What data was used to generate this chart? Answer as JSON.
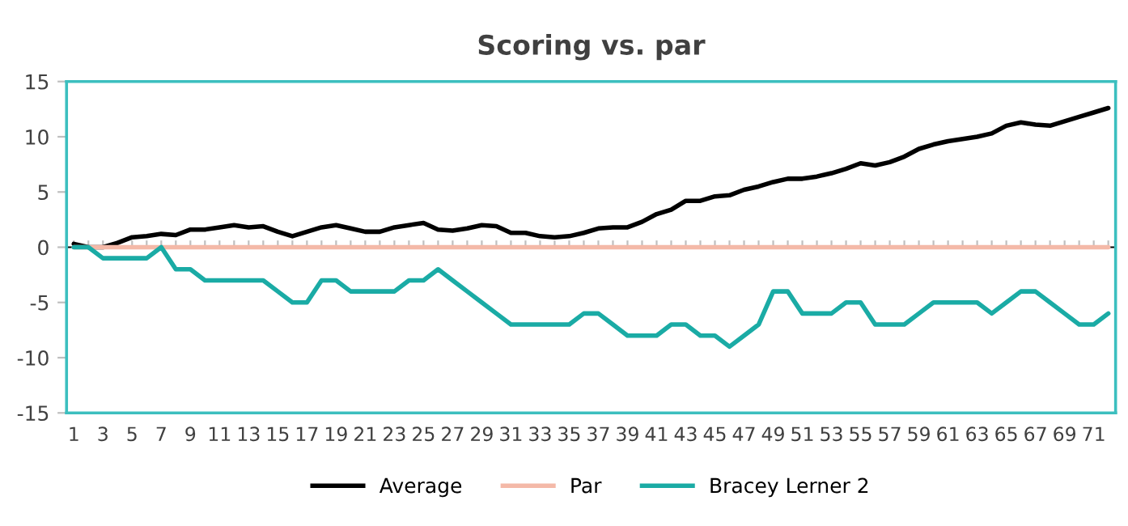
{
  "chart_data": {
    "type": "line",
    "title": "Scoring vs. par",
    "categories": [
      "1",
      null,
      "3",
      null,
      "5",
      null,
      "7",
      null,
      "9",
      null,
      "11",
      null,
      "13",
      null,
      "15",
      null,
      "17",
      null,
      "19",
      null,
      "21",
      null,
      "23",
      null,
      "25",
      null,
      "27",
      null,
      "29",
      null,
      "31",
      null,
      "33",
      null,
      "35",
      null,
      "37",
      null,
      "39",
      null,
      "41",
      null,
      "43",
      null,
      "45",
      null,
      "47",
      null,
      "49",
      null,
      "51",
      null,
      "53",
      null,
      "55",
      null,
      "57",
      null,
      "59",
      null,
      "61",
      null,
      "63",
      null,
      "65",
      null,
      "67",
      null,
      "69",
      null,
      "71",
      null
    ],
    "series": [
      {
        "name": "Average",
        "color": "#000000",
        "values": [
          0.3,
          0,
          0,
          0.4,
          0.9,
          1.0,
          1.2,
          1.1,
          1.6,
          1.6,
          1.8,
          2.0,
          1.8,
          1.9,
          1.4,
          1.0,
          1.4,
          1.8,
          2.0,
          1.7,
          1.4,
          1.4,
          1.8,
          2.0,
          2.2,
          1.6,
          1.5,
          1.7,
          2.0,
          1.9,
          1.3,
          1.3,
          1.0,
          0.9,
          1.0,
          1.3,
          1.7,
          1.8,
          1.8,
          2.3,
          3.0,
          3.4,
          4.2,
          4.2,
          4.6,
          4.7,
          5.2,
          5.5,
          5.9,
          6.2,
          6.2,
          6.4,
          6.7,
          7.1,
          7.6,
          7.4,
          7.7,
          8.2,
          8.9,
          9.3,
          9.6,
          9.8,
          10.0,
          10.3,
          11.0,
          11.3,
          11.1,
          11.0,
          11.4,
          11.8,
          12.2,
          12.6
        ]
      },
      {
        "name": "Par",
        "color": "#f4b9a8",
        "values": [
          0,
          0,
          0,
          0,
          0,
          0,
          0,
          0,
          0,
          0,
          0,
          0,
          0,
          0,
          0,
          0,
          0,
          0,
          0,
          0,
          0,
          0,
          0,
          0,
          0,
          0,
          0,
          0,
          0,
          0,
          0,
          0,
          0,
          0,
          0,
          0,
          0,
          0,
          0,
          0,
          0,
          0,
          0,
          0,
          0,
          0,
          0,
          0,
          0,
          0,
          0,
          0,
          0,
          0,
          0,
          0,
          0,
          0,
          0,
          0,
          0,
          0,
          0,
          0,
          0,
          0,
          0,
          0,
          0,
          0,
          0,
          0
        ]
      },
      {
        "name": "Bracey Lerner 2",
        "color": "#1aaba5",
        "values": [
          0,
          0,
          -1,
          -1,
          -1,
          -1,
          0,
          -2,
          -2,
          -3,
          -3,
          -3,
          -3,
          -3,
          -4,
          -5,
          -5,
          -3,
          -3,
          -4,
          -4,
          -4,
          -4,
          -3,
          -3,
          -2,
          -3,
          -4,
          -5,
          -6,
          -7,
          -7,
          -7,
          -7,
          -7,
          -6,
          -6,
          -7,
          -8,
          -8,
          -8,
          -7,
          -7,
          -8,
          -8,
          -9,
          -8,
          -7,
          -4,
          -4,
          -6,
          -6,
          -6,
          -5,
          -5,
          -7,
          -7,
          -7,
          -6,
          -5,
          -5,
          -5,
          -5,
          -6,
          -5,
          -4,
          -4,
          -5,
          -6,
          -7,
          -7,
          -6
        ]
      }
    ],
    "ylim": [
      -15,
      15
    ],
    "yticks": [
      -15,
      -10,
      -5,
      0,
      5,
      10,
      15
    ],
    "grid": false,
    "legend": "bottom",
    "marker": "none",
    "line_style": "solid"
  }
}
